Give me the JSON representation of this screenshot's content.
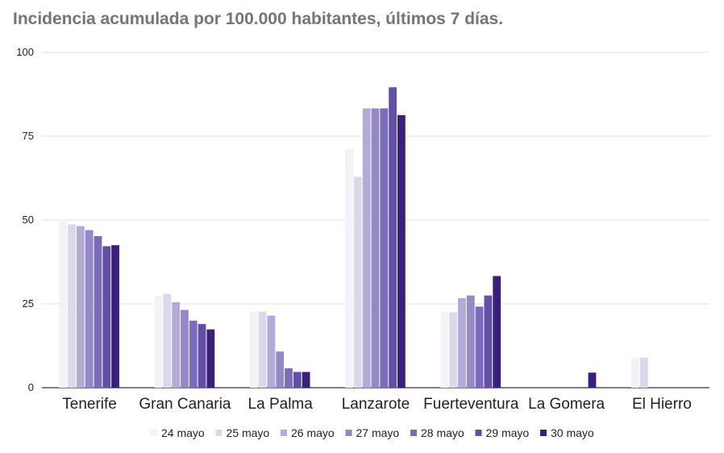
{
  "chart_data": {
    "type": "bar",
    "title": "Incidencia acumulada por 100.000 habitantes, últimos 7 días.",
    "xlabel": "",
    "ylabel": "",
    "ylim": [
      0,
      100
    ],
    "yticks": [
      "0",
      "25",
      "50",
      "75",
      "100"
    ],
    "grid": true,
    "legend_position": "bottom",
    "categories": [
      "Tenerife",
      "Gran Canaria",
      "La Palma",
      "Lanzarote",
      "Fuerteventura",
      "La Gomera",
      "El Hierro"
    ],
    "series": [
      {
        "name": "24 mayo",
        "color": "#f3f2f7",
        "values": [
          50.0,
          27.5,
          22.7,
          71.3,
          22.5,
          0,
          9.0
        ]
      },
      {
        "name": "25 mayo",
        "color": "#dcd8ec",
        "values": [
          48.7,
          28.0,
          22.7,
          62.9,
          22.5,
          0,
          9.0
        ]
      },
      {
        "name": "26 mayo",
        "color": "#b4aad5",
        "values": [
          48.2,
          25.5,
          21.5,
          83.3,
          26.7,
          0,
          0
        ]
      },
      {
        "name": "27 mayo",
        "color": "#9588c7",
        "values": [
          47.0,
          23.2,
          10.8,
          83.3,
          27.5,
          0,
          0
        ]
      },
      {
        "name": "28 mayo",
        "color": "#7b6bb8",
        "values": [
          45.2,
          20.0,
          5.8,
          83.3,
          24.2,
          0,
          0
        ]
      },
      {
        "name": "29 mayo",
        "color": "#644fa8",
        "values": [
          42.2,
          19.0,
          4.7,
          89.6,
          27.5,
          0,
          0
        ]
      },
      {
        "name": "30 mayo",
        "color": "#3b1f7c",
        "values": [
          42.5,
          17.4,
          4.7,
          81.3,
          33.3,
          4.5,
          0
        ]
      }
    ]
  }
}
